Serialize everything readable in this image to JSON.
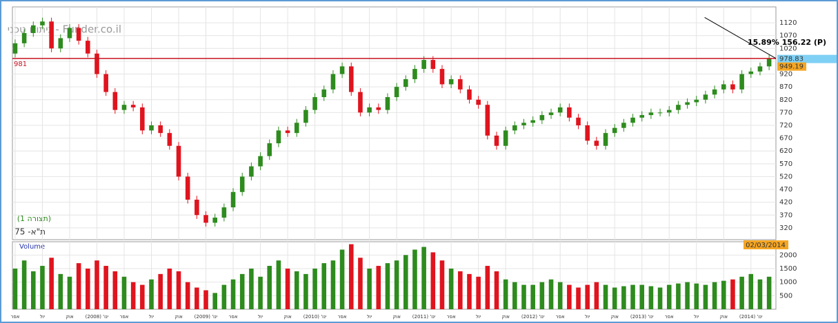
{
  "chart_data": {
    "type": "candlestick",
    "title": "ניתוח טכני - Funder.co.il",
    "series_label": "(תצורה 1)",
    "instrument": "ת\"א- 75",
    "xlim": [
      -0.3,
      83.75
    ],
    "ylim": [
      274,
      1182
    ],
    "yticks": [
      320,
      370,
      420,
      470,
      520,
      570,
      620,
      670,
      720,
      770,
      820,
      870,
      920,
      970,
      1020,
      1070,
      1120
    ],
    "xticks": [
      {
        "value": 0,
        "label": "אפר"
      },
      {
        "value": 3,
        "label": "יול"
      },
      {
        "value": 6,
        "label": "אוק"
      },
      {
        "value": 9,
        "label": "ינו' (2008)"
      },
      {
        "value": 12,
        "label": "אפר"
      },
      {
        "value": 15,
        "label": "יול"
      },
      {
        "value": 18,
        "label": "אוק"
      },
      {
        "value": 21,
        "label": "ינו' (2009)"
      },
      {
        "value": 24,
        "label": "אפר"
      },
      {
        "value": 27,
        "label": "יול"
      },
      {
        "value": 30,
        "label": "אוק"
      },
      {
        "value": 33,
        "label": "ינו' (2010)"
      },
      {
        "value": 36,
        "label": "אפר"
      },
      {
        "value": 39,
        "label": "יול"
      },
      {
        "value": 42,
        "label": "אוק"
      },
      {
        "value": 45,
        "label": "ינו' (2011)"
      },
      {
        "value": 48,
        "label": "אפר"
      },
      {
        "value": 51,
        "label": "יול"
      },
      {
        "value": 54,
        "label": "אוק"
      },
      {
        "value": 57,
        "label": "ינו' (2012)"
      },
      {
        "value": 60,
        "label": "אפר"
      },
      {
        "value": 63,
        "label": "יול"
      },
      {
        "value": 66,
        "label": "אוק"
      },
      {
        "value": 69,
        "label": "ינו' (2013)"
      },
      {
        "value": 72,
        "label": "אפר"
      },
      {
        "value": 75,
        "label": "יול"
      },
      {
        "value": 78,
        "label": "אוק"
      },
      {
        "value": 81,
        "label": "ינו' (2014)"
      }
    ],
    "open": [
      1000,
      1040,
      1080,
      1110,
      1125,
      1020,
      1060,
      1100,
      1050,
      1000,
      920,
      850,
      780,
      800,
      790,
      700,
      720,
      690,
      640,
      520,
      430,
      370,
      340,
      360,
      400,
      460,
      520,
      560,
      600,
      650,
      700,
      690,
      730,
      780,
      830,
      860,
      920,
      950,
      850,
      770,
      790,
      780,
      830,
      870,
      900,
      940,
      975,
      940,
      880,
      900,
      860,
      820,
      800,
      680,
      640,
      700,
      720,
      730,
      740,
      760,
      770,
      790,
      750,
      720,
      660,
      640,
      690,
      710,
      730,
      750,
      760,
      770,
      770,
      780,
      800,
      810,
      820,
      840,
      860,
      880,
      860,
      920,
      930,
      950
    ],
    "high": [
      1055,
      1095,
      1125,
      1140,
      1140,
      1075,
      1115,
      1115,
      1065,
      1015,
      935,
      865,
      815,
      815,
      805,
      735,
      735,
      705,
      655,
      535,
      445,
      385,
      375,
      415,
      475,
      535,
      575,
      615,
      665,
      715,
      715,
      745,
      795,
      845,
      875,
      935,
      965,
      965,
      865,
      805,
      805,
      845,
      885,
      915,
      955,
      990,
      990,
      955,
      915,
      915,
      875,
      835,
      815,
      695,
      715,
      735,
      745,
      755,
      775,
      785,
      805,
      805,
      765,
      735,
      675,
      705,
      725,
      745,
      765,
      775,
      785,
      785,
      795,
      815,
      825,
      835,
      855,
      875,
      895,
      895,
      935,
      945,
      965,
      994
    ],
    "low": [
      985,
      1025,
      1065,
      1095,
      1005,
      1005,
      1045,
      1035,
      985,
      905,
      835,
      765,
      765,
      775,
      685,
      685,
      675,
      625,
      505,
      415,
      355,
      325,
      325,
      345,
      385,
      445,
      505,
      545,
      585,
      635,
      675,
      675,
      715,
      765,
      815,
      845,
      905,
      835,
      755,
      755,
      765,
      765,
      815,
      855,
      885,
      925,
      925,
      865,
      865,
      845,
      805,
      785,
      665,
      625,
      625,
      685,
      705,
      715,
      725,
      745,
      755,
      735,
      705,
      645,
      625,
      625,
      675,
      695,
      715,
      735,
      745,
      755,
      755,
      765,
      785,
      795,
      805,
      825,
      845,
      845,
      845,
      905,
      915,
      935
    ],
    "close": [
      1040,
      1080,
      1110,
      1125,
      1020,
      1060,
      1100,
      1050,
      1000,
      920,
      850,
      780,
      800,
      790,
      700,
      720,
      690,
      640,
      520,
      430,
      370,
      340,
      360,
      400,
      460,
      520,
      560,
      600,
      650,
      700,
      690,
      730,
      780,
      830,
      860,
      920,
      950,
      850,
      770,
      790,
      780,
      830,
      870,
      900,
      940,
      975,
      940,
      880,
      900,
      860,
      820,
      800,
      680,
      640,
      700,
      720,
      730,
      740,
      760,
      770,
      790,
      750,
      720,
      660,
      640,
      690,
      710,
      730,
      750,
      760,
      770,
      770,
      780,
      800,
      810,
      820,
      840,
      860,
      880,
      860,
      920,
      930,
      950,
      979
    ],
    "up_color": "#2e8b1e",
    "down_color": "#e0141e",
    "level_line": 981,
    "trendline": {
      "x": [
        75.9,
        83.75
      ],
      "y": [
        1141,
        981
      ]
    },
    "annotation": "15.89% 156.22 (P)",
    "last_price": 978.83,
    "prev_price": 949.19,
    "date_label": "02/03/2014",
    "volume": {
      "name": "Volume",
      "y2lim": [
        0,
        2491
      ],
      "y2ticks": [
        500,
        1000,
        1500,
        2000
      ],
      "values": [
        1500,
        1800,
        1400,
        1600,
        1900,
        1300,
        1200,
        1700,
        1500,
        1800,
        1600,
        1400,
        1200,
        1000,
        900,
        1100,
        1300,
        1500,
        1400,
        1000,
        800,
        700,
        600,
        900,
        1100,
        1300,
        1500,
        1200,
        1600,
        1800,
        1500,
        1400,
        1300,
        1500,
        1700,
        1800,
        2200,
        2400,
        1900,
        1500,
        1600,
        1700,
        1800,
        2000,
        2200,
        2300,
        2100,
        1800,
        1500,
        1400,
        1300,
        1200,
        1600,
        1400,
        1100,
        1000,
        900,
        900,
        1000,
        1100,
        1000,
        900,
        800,
        900,
        1000,
        900,
        800,
        850,
        900,
        900,
        850,
        800,
        900,
        950,
        1000,
        950,
        900,
        1000,
        1050,
        1100,
        1200,
        1300,
        1100,
        1200
      ]
    }
  }
}
